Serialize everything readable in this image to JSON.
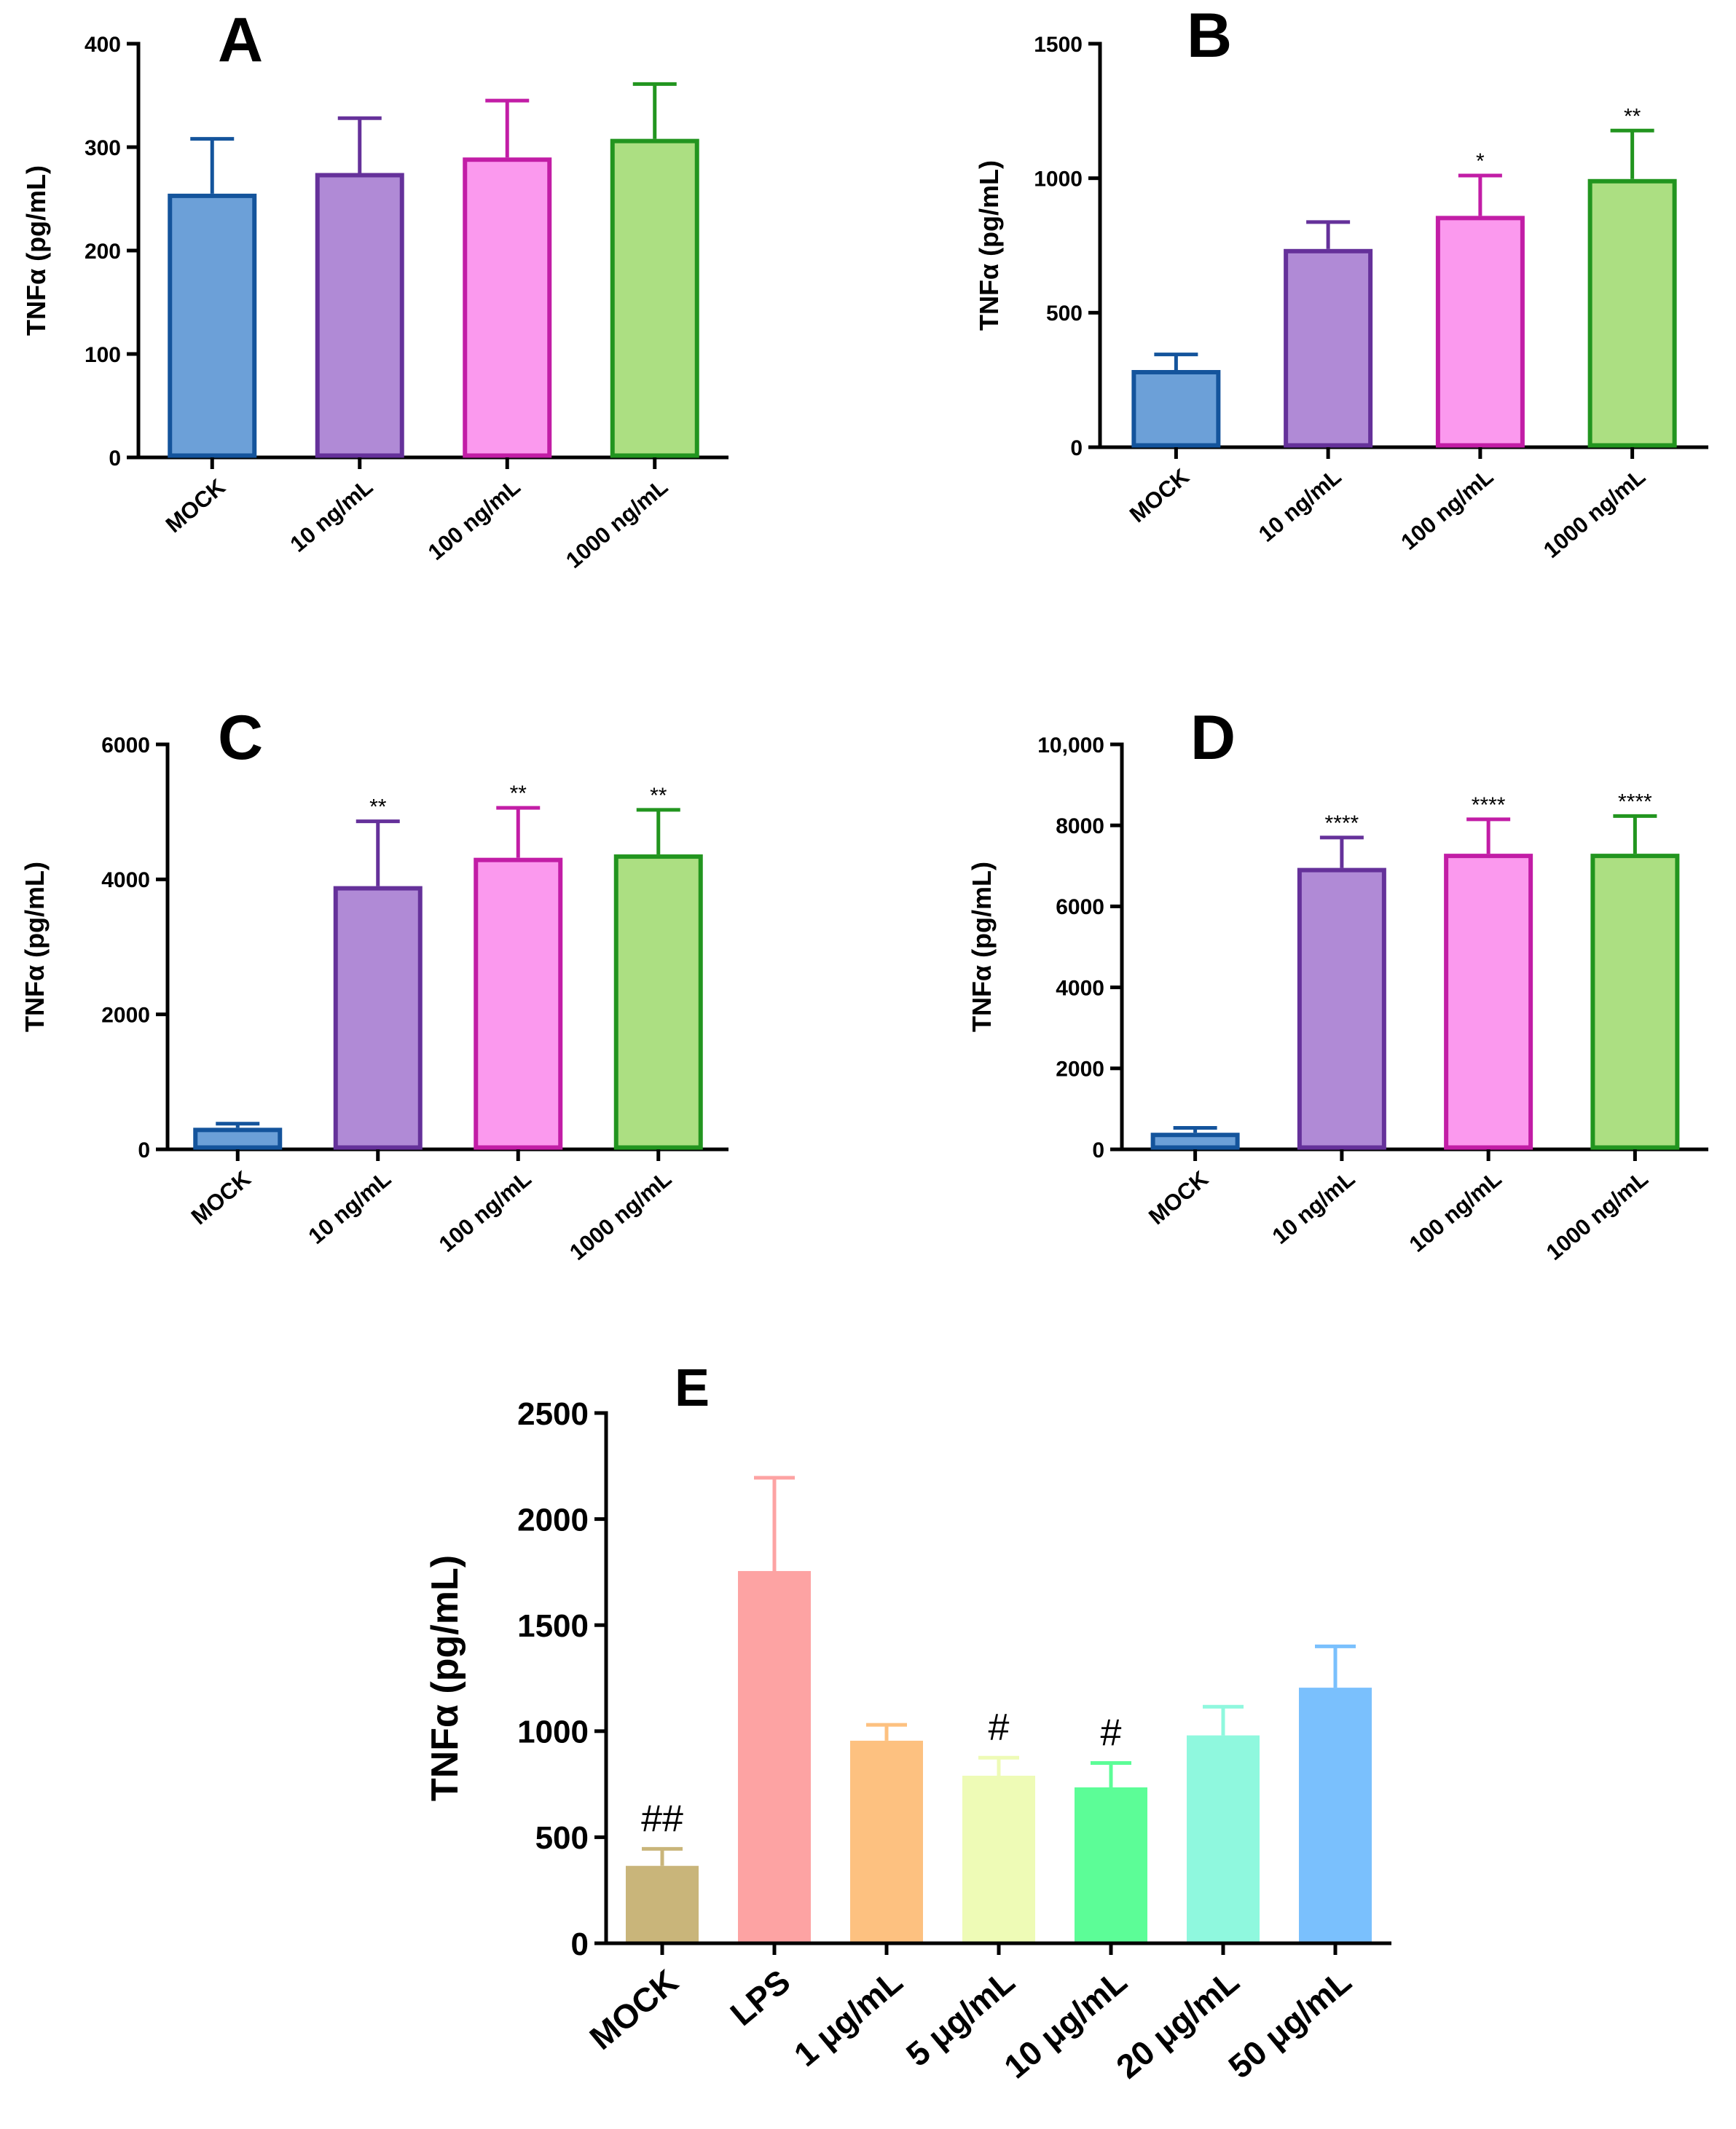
{
  "chart_data": [
    {
      "type": "bar",
      "panel": "A",
      "ylabel": "TNFα (pg/mL)",
      "ylim": [
        0,
        400
      ],
      "yticks": [
        0,
        100,
        200,
        300,
        400
      ],
      "ytick_labels": [
        "0",
        "100",
        "200",
        "300",
        "400"
      ],
      "categories": [
        "MOCK",
        "10 ng/mL",
        "100 ng/mL",
        "1000 ng/mL"
      ],
      "values": [
        255,
        275,
        290,
        308
      ],
      "errors": [
        53,
        53,
        55,
        53
      ],
      "significance": [
        "",
        "",
        "",
        ""
      ],
      "fill_colors": [
        "#6ca0d8",
        "#b08ad6",
        "#fb99ee",
        "#acdf82"
      ],
      "edge_colors": [
        "#14549c",
        "#65319a",
        "#c21da6",
        "#22951f"
      ]
    },
    {
      "type": "bar",
      "panel": "B",
      "ylabel": "TNFα (pg/mL)",
      "ylim": [
        0,
        1500
      ],
      "yticks": [
        0,
        500,
        1000,
        1500
      ],
      "ytick_labels": [
        "0",
        "500",
        "1000",
        "1500"
      ],
      "categories": [
        "MOCK",
        "10 ng/mL",
        "100 ng/mL",
        "1000 ng/mL"
      ],
      "values": [
        287,
        737,
        860,
        997
      ],
      "errors": [
        58,
        100,
        150,
        180
      ],
      "significance": [
        "",
        "",
        "*",
        "**"
      ],
      "fill_colors": [
        "#6ca0d8",
        "#b08ad6",
        "#fb99ee",
        "#acdf82"
      ],
      "edge_colors": [
        "#14549c",
        "#65319a",
        "#c21da6",
        "#22951f"
      ]
    },
    {
      "type": "bar",
      "panel": "C",
      "ylabel": "TNFα (pg/mL)",
      "ylim": [
        0,
        6000
      ],
      "yticks": [
        0,
        2000,
        4000,
        6000
      ],
      "ytick_labels": [
        "0",
        "2000",
        "4000",
        "6000"
      ],
      "categories": [
        "MOCK",
        "10 ng/mL",
        "100 ng/mL",
        "1000 ng/mL"
      ],
      "values": [
        320,
        3900,
        4320,
        4370
      ],
      "errors": [
        60,
        960,
        740,
        660
      ],
      "significance": [
        "",
        "**",
        "**",
        "**"
      ],
      "fill_colors": [
        "#6ca0d8",
        "#b08ad6",
        "#fb99ee",
        "#acdf82"
      ],
      "edge_colors": [
        "#14549c",
        "#65319a",
        "#c21da6",
        "#22951f"
      ]
    },
    {
      "type": "bar",
      "panel": "D",
      "ylabel": "TNFα (pg/mL)",
      "ylim": [
        0,
        10000
      ],
      "yticks": [
        0,
        2000,
        4000,
        6000,
        8000,
        10000
      ],
      "ytick_labels": [
        "0",
        "2000",
        "4000",
        "6000",
        "8000",
        "10,000"
      ],
      "categories": [
        "MOCK",
        "10 ng/mL",
        "100 ng/mL",
        "1000 ng/mL"
      ],
      "values": [
        410,
        6950,
        7300,
        7300
      ],
      "errors": [
        120,
        750,
        850,
        930
      ],
      "significance": [
        "",
        "****",
        "****",
        "****"
      ],
      "fill_colors": [
        "#6ca0d8",
        "#b08ad6",
        "#fb99ee",
        "#acdf82"
      ],
      "edge_colors": [
        "#14549c",
        "#65319a",
        "#c21da6",
        "#22951f"
      ]
    },
    {
      "type": "bar",
      "panel": "E",
      "ylabel": "TNFα (pg/mL)",
      "ylim": [
        0,
        2500
      ],
      "yticks": [
        0,
        500,
        1000,
        1500,
        2000,
        2500
      ],
      "ytick_labels": [
        "0",
        "500",
        "1000",
        "1500",
        "2000",
        "2500"
      ],
      "categories": [
        "MOCK",
        "LPS",
        "1 μg/mL",
        "5 μg/mL",
        "10 μg/mL",
        "20 μg/mL",
        "50 μg/mL"
      ],
      "values": [
        365,
        1755,
        955,
        790,
        735,
        980,
        1205
      ],
      "errors": [
        80,
        440,
        75,
        85,
        115,
        135,
        195
      ],
      "significance": [
        "##",
        "",
        "",
        "#",
        "#",
        "",
        ""
      ],
      "fill_colors": [
        "#c9b57a",
        "#fda3a3",
        "#fdc180",
        "#eefbb6",
        "#5cfd97",
        "#8ff8de",
        "#7ac0fd"
      ],
      "edge_colors": [
        "#c9b57a",
        "#fda3a3",
        "#fdc180",
        "#eefbb6",
        "#5cfd97",
        "#8ff8de",
        "#7ac0fd"
      ]
    }
  ]
}
